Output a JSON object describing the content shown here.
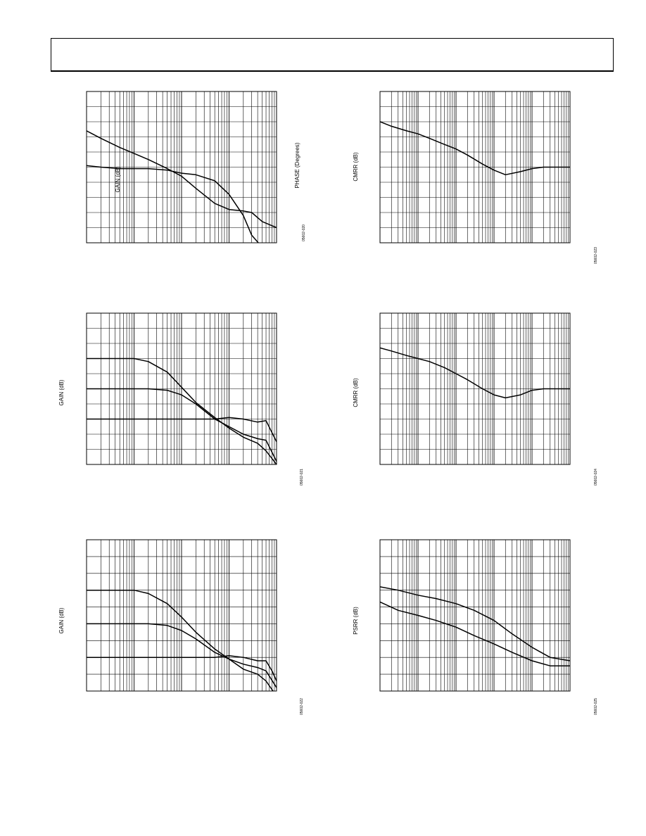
{
  "chart_data": [
    {
      "type": "line",
      "ylabel": "GAIN (dB)",
      "y2label": "PHASE (Degrees)",
      "figure_code": "05602-020",
      "x_scale": "log",
      "xlim": [
        1,
        10000
      ],
      "ylim": [
        0,
        10
      ],
      "grid": true,
      "series": [
        {
          "x": [
            1,
            2,
            5,
            10,
            20,
            50,
            100,
            200,
            500,
            1000,
            2000,
            3000,
            5000
          ],
          "values": [
            5.1,
            5.0,
            4.9,
            4.9,
            4.9,
            4.8,
            4.6,
            4.5,
            4.1,
            3.2,
            1.8,
            0.5,
            -0.3
          ]
        },
        {
          "x": [
            1,
            2,
            5,
            10,
            20,
            50,
            100,
            200,
            500,
            1000,
            2000,
            3000,
            5000,
            10000
          ],
          "values": [
            7.4,
            6.9,
            6.3,
            5.9,
            5.5,
            4.9,
            4.4,
            3.6,
            2.6,
            2.2,
            2.1,
            2.0,
            1.4,
            1.0
          ]
        }
      ]
    },
    {
      "type": "line",
      "ylabel": "GAIN (dB)",
      "figure_code": "05602-021",
      "x_scale": "log",
      "xlim": [
        1,
        10000
      ],
      "ylim": [
        0,
        10
      ],
      "grid": true,
      "series": [
        {
          "x": [
            1,
            5,
            10,
            20,
            50,
            100,
            200,
            500,
            1000,
            2000,
            4000,
            6000,
            10000
          ],
          "values": [
            7.0,
            7.0,
            7.0,
            6.8,
            6.1,
            5.1,
            4.1,
            3.1,
            2.4,
            1.8,
            1.4,
            0.9,
            0.0
          ]
        },
        {
          "x": [
            1,
            5,
            10,
            20,
            50,
            100,
            200,
            500,
            1000,
            2000,
            4000,
            6000,
            10000
          ],
          "values": [
            5.0,
            5.0,
            5.0,
            5.0,
            4.9,
            4.6,
            4.0,
            3.0,
            2.5,
            2.0,
            1.7,
            1.6,
            0.2
          ]
        },
        {
          "x": [
            1,
            10,
            100,
            500,
            1000,
            2000,
            4000,
            6000,
            8000,
            10000
          ],
          "values": [
            3.0,
            3.0,
            3.0,
            3.0,
            3.1,
            3.0,
            2.8,
            2.9,
            2.1,
            1.5
          ]
        }
      ]
    },
    {
      "type": "line",
      "ylabel": "GAIN (dB)",
      "figure_code": "05602-022",
      "x_scale": "log",
      "xlim": [
        1,
        10000
      ],
      "ylim": [
        0,
        9
      ],
      "grid": true,
      "series": [
        {
          "x": [
            1,
            5,
            10,
            20,
            50,
            100,
            200,
            500,
            1000,
            2000,
            4000,
            6000,
            10000
          ],
          "values": [
            6.0,
            6.0,
            6.0,
            5.8,
            5.2,
            4.4,
            3.5,
            2.5,
            1.9,
            1.3,
            1.0,
            0.6,
            -0.3
          ]
        },
        {
          "x": [
            1,
            5,
            10,
            20,
            50,
            100,
            200,
            500,
            1000,
            2000,
            4000,
            6000,
            10000
          ],
          "values": [
            4.0,
            4.0,
            4.0,
            4.0,
            3.9,
            3.6,
            3.1,
            2.3,
            1.9,
            1.6,
            1.4,
            1.2,
            0.2
          ]
        },
        {
          "x": [
            1,
            10,
            100,
            500,
            1000,
            2000,
            4000,
            6000,
            8000,
            10000
          ],
          "values": [
            2.0,
            2.0,
            2.0,
            2.0,
            2.1,
            2.0,
            1.8,
            1.8,
            1.2,
            0.6
          ]
        }
      ]
    },
    {
      "type": "line",
      "ylabel": "CMRR (dB)",
      "figure_code": "05602-023",
      "x_scale": "log",
      "xlim": [
        1,
        100000
      ],
      "ylim": [
        0,
        10
      ],
      "grid": true,
      "series": [
        {
          "x": [
            1,
            2,
            5,
            10,
            20,
            50,
            100,
            200,
            500,
            1000,
            2000,
            5000,
            10000,
            20000,
            50000,
            100000
          ],
          "values": [
            8.0,
            7.7,
            7.4,
            7.2,
            6.9,
            6.5,
            6.2,
            5.8,
            5.2,
            4.8,
            4.5,
            4.7,
            4.9,
            5.0,
            5.0,
            5.0
          ]
        }
      ]
    },
    {
      "type": "line",
      "ylabel": "CMRR (dB)",
      "figure_code": "05602-024",
      "x_scale": "log",
      "xlim": [
        1,
        100000
      ],
      "ylim": [
        0,
        10
      ],
      "grid": true,
      "series": [
        {
          "x": [
            1,
            2,
            5,
            10,
            20,
            50,
            100,
            200,
            500,
            1000,
            2000,
            5000,
            10000,
            20000,
            50000,
            100000
          ],
          "values": [
            7.7,
            7.5,
            7.2,
            7.0,
            6.8,
            6.4,
            6.0,
            5.6,
            5.0,
            4.6,
            4.4,
            4.6,
            4.9,
            5.0,
            5.0,
            5.0
          ]
        }
      ]
    },
    {
      "type": "line",
      "ylabel": "PSRR (dB)",
      "figure_code": "05602-025",
      "x_scale": "log",
      "xlim": [
        1,
        100000
      ],
      "ylim": [
        0,
        9
      ],
      "grid": true,
      "series": [
        {
          "x": [
            1,
            3,
            10,
            30,
            100,
            300,
            1000,
            3000,
            10000,
            30000,
            100000
          ],
          "values": [
            6.2,
            6.0,
            5.7,
            5.5,
            5.2,
            4.8,
            4.2,
            3.4,
            2.6,
            2.0,
            1.8
          ]
        },
        {
          "x": [
            1,
            3,
            10,
            30,
            100,
            300,
            1000,
            3000,
            10000,
            30000,
            100000
          ],
          "values": [
            5.3,
            4.8,
            4.5,
            4.2,
            3.8,
            3.3,
            2.8,
            2.3,
            1.8,
            1.5,
            1.5
          ]
        }
      ]
    }
  ]
}
